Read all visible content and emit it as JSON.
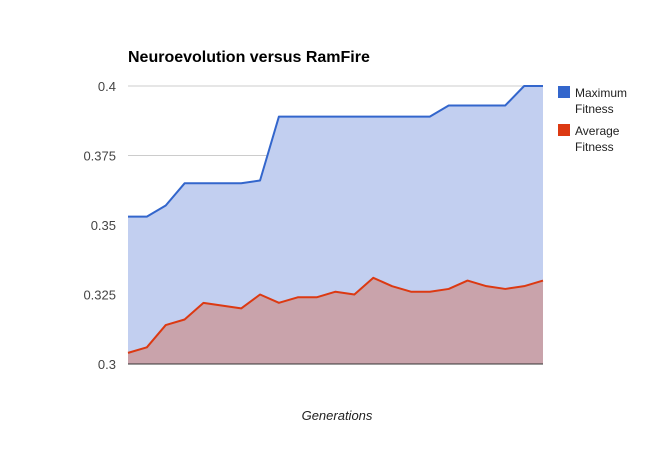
{
  "chart_data": {
    "type": "area",
    "title": "Neuroevolution versus RamFire",
    "xlabel": "Generations",
    "ylabel": "",
    "ylim": [
      0.3,
      0.4
    ],
    "yticks": [
      "0.3",
      "0.325",
      "0.35",
      "0.375",
      "0.4"
    ],
    "x": [
      1,
      2,
      3,
      4,
      5,
      6,
      7,
      8,
      9,
      10,
      11,
      12,
      13,
      14,
      15,
      16,
      17,
      18,
      19,
      20,
      21,
      22,
      23
    ],
    "grid": true,
    "legend_position": "right",
    "series": [
      {
        "name": "Maximum Fitness",
        "color": "#3366cc",
        "fill": "#c2cff0",
        "values": [
          0.353,
          0.353,
          0.357,
          0.365,
          0.365,
          0.365,
          0.365,
          0.366,
          0.389,
          0.389,
          0.389,
          0.389,
          0.389,
          0.389,
          0.389,
          0.389,
          0.389,
          0.393,
          0.393,
          0.393,
          0.393,
          0.4,
          0.4
        ]
      },
      {
        "name": "Average Fitness",
        "color": "#dc3912",
        "fill": "#c9a3ab",
        "values": [
          0.304,
          0.306,
          0.314,
          0.316,
          0.322,
          0.321,
          0.32,
          0.325,
          0.322,
          0.324,
          0.324,
          0.326,
          0.325,
          0.331,
          0.328,
          0.326,
          0.326,
          0.327,
          0.33,
          0.328,
          0.327,
          0.328,
          0.33
        ]
      }
    ]
  }
}
